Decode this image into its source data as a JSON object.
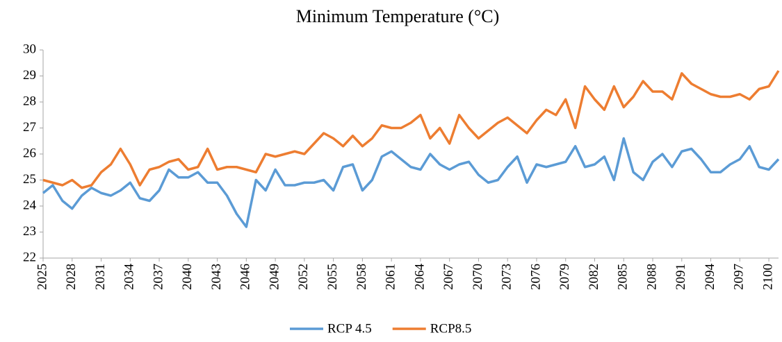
{
  "chart_data": {
    "type": "line",
    "title": "Minimum Temperature (°C)",
    "x": [
      2025,
      2026,
      2027,
      2028,
      2029,
      2030,
      2031,
      2032,
      2033,
      2034,
      2035,
      2036,
      2037,
      2038,
      2039,
      2040,
      2041,
      2042,
      2043,
      2044,
      2045,
      2046,
      2047,
      2048,
      2049,
      2050,
      2051,
      2052,
      2053,
      2054,
      2055,
      2056,
      2057,
      2058,
      2059,
      2060,
      2061,
      2062,
      2063,
      2064,
      2065,
      2066,
      2067,
      2068,
      2069,
      2070,
      2071,
      2072,
      2073,
      2074,
      2075,
      2076,
      2077,
      2078,
      2079,
      2080,
      2081,
      2082,
      2083,
      2084,
      2085,
      2086,
      2087,
      2088,
      2089,
      2090,
      2091,
      2092,
      2093,
      2094,
      2095,
      2096,
      2097,
      2098,
      2099,
      2100,
      2101
    ],
    "series": [
      {
        "name": "RCP 4.5",
        "color": "#5b9bd5",
        "values": [
          24.5,
          24.8,
          24.2,
          23.9,
          24.4,
          24.7,
          24.5,
          24.4,
          24.6,
          24.9,
          24.3,
          24.2,
          24.6,
          25.4,
          25.1,
          25.1,
          25.3,
          24.9,
          24.9,
          24.4,
          23.7,
          23.2,
          25.0,
          24.6,
          25.4,
          24.8,
          24.8,
          24.9,
          24.9,
          25.0,
          24.6,
          25.5,
          25.6,
          24.6,
          25.0,
          25.9,
          26.1,
          25.8,
          25.5,
          25.4,
          26.0,
          25.6,
          25.4,
          25.6,
          25.7,
          25.2,
          24.9,
          25.0,
          25.5,
          25.9,
          24.9,
          25.6,
          25.5,
          25.6,
          25.7,
          26.3,
          25.5,
          25.6,
          25.9,
          25.0,
          26.6,
          25.3,
          25.0,
          25.7,
          26.0,
          25.5,
          26.1,
          26.2,
          25.8,
          25.3,
          25.3,
          25.6,
          25.8,
          26.3,
          25.5,
          25.4,
          25.8
        ]
      },
      {
        "name": "RCP8.5",
        "color": "#ed7d31",
        "values": [
          25.0,
          24.9,
          24.8,
          25.0,
          24.7,
          24.8,
          25.3,
          25.6,
          26.2,
          25.6,
          24.8,
          25.4,
          25.5,
          25.7,
          25.8,
          25.4,
          25.5,
          26.2,
          25.4,
          25.5,
          25.5,
          25.4,
          25.3,
          26.0,
          25.9,
          26.0,
          26.1,
          26.0,
          26.4,
          26.8,
          26.6,
          26.3,
          26.7,
          26.3,
          26.6,
          27.1,
          27.0,
          27.0,
          27.2,
          27.5,
          26.6,
          27.0,
          26.4,
          27.5,
          27.0,
          26.6,
          26.9,
          27.2,
          27.4,
          27.1,
          26.8,
          27.3,
          27.7,
          27.5,
          28.1,
          27.0,
          28.6,
          28.1,
          27.7,
          28.6,
          27.8,
          28.2,
          28.8,
          28.4,
          28.4,
          28.1,
          29.1,
          28.7,
          28.5,
          28.3,
          28.2,
          28.2,
          28.3,
          28.1,
          28.5,
          28.6,
          29.2
        ]
      }
    ],
    "xlim": [
      2025,
      2101
    ],
    "xticks": [
      2025,
      2028,
      2031,
      2034,
      2037,
      2040,
      2043,
      2046,
      2049,
      2052,
      2055,
      2058,
      2061,
      2064,
      2067,
      2070,
      2073,
      2076,
      2079,
      2082,
      2085,
      2088,
      2091,
      2094,
      2097,
      2100
    ],
    "ylim": [
      22,
      30
    ],
    "yticks": [
      22,
      23,
      24,
      25,
      26,
      27,
      28,
      29,
      30
    ],
    "grid": false,
    "legend": "bottom"
  }
}
